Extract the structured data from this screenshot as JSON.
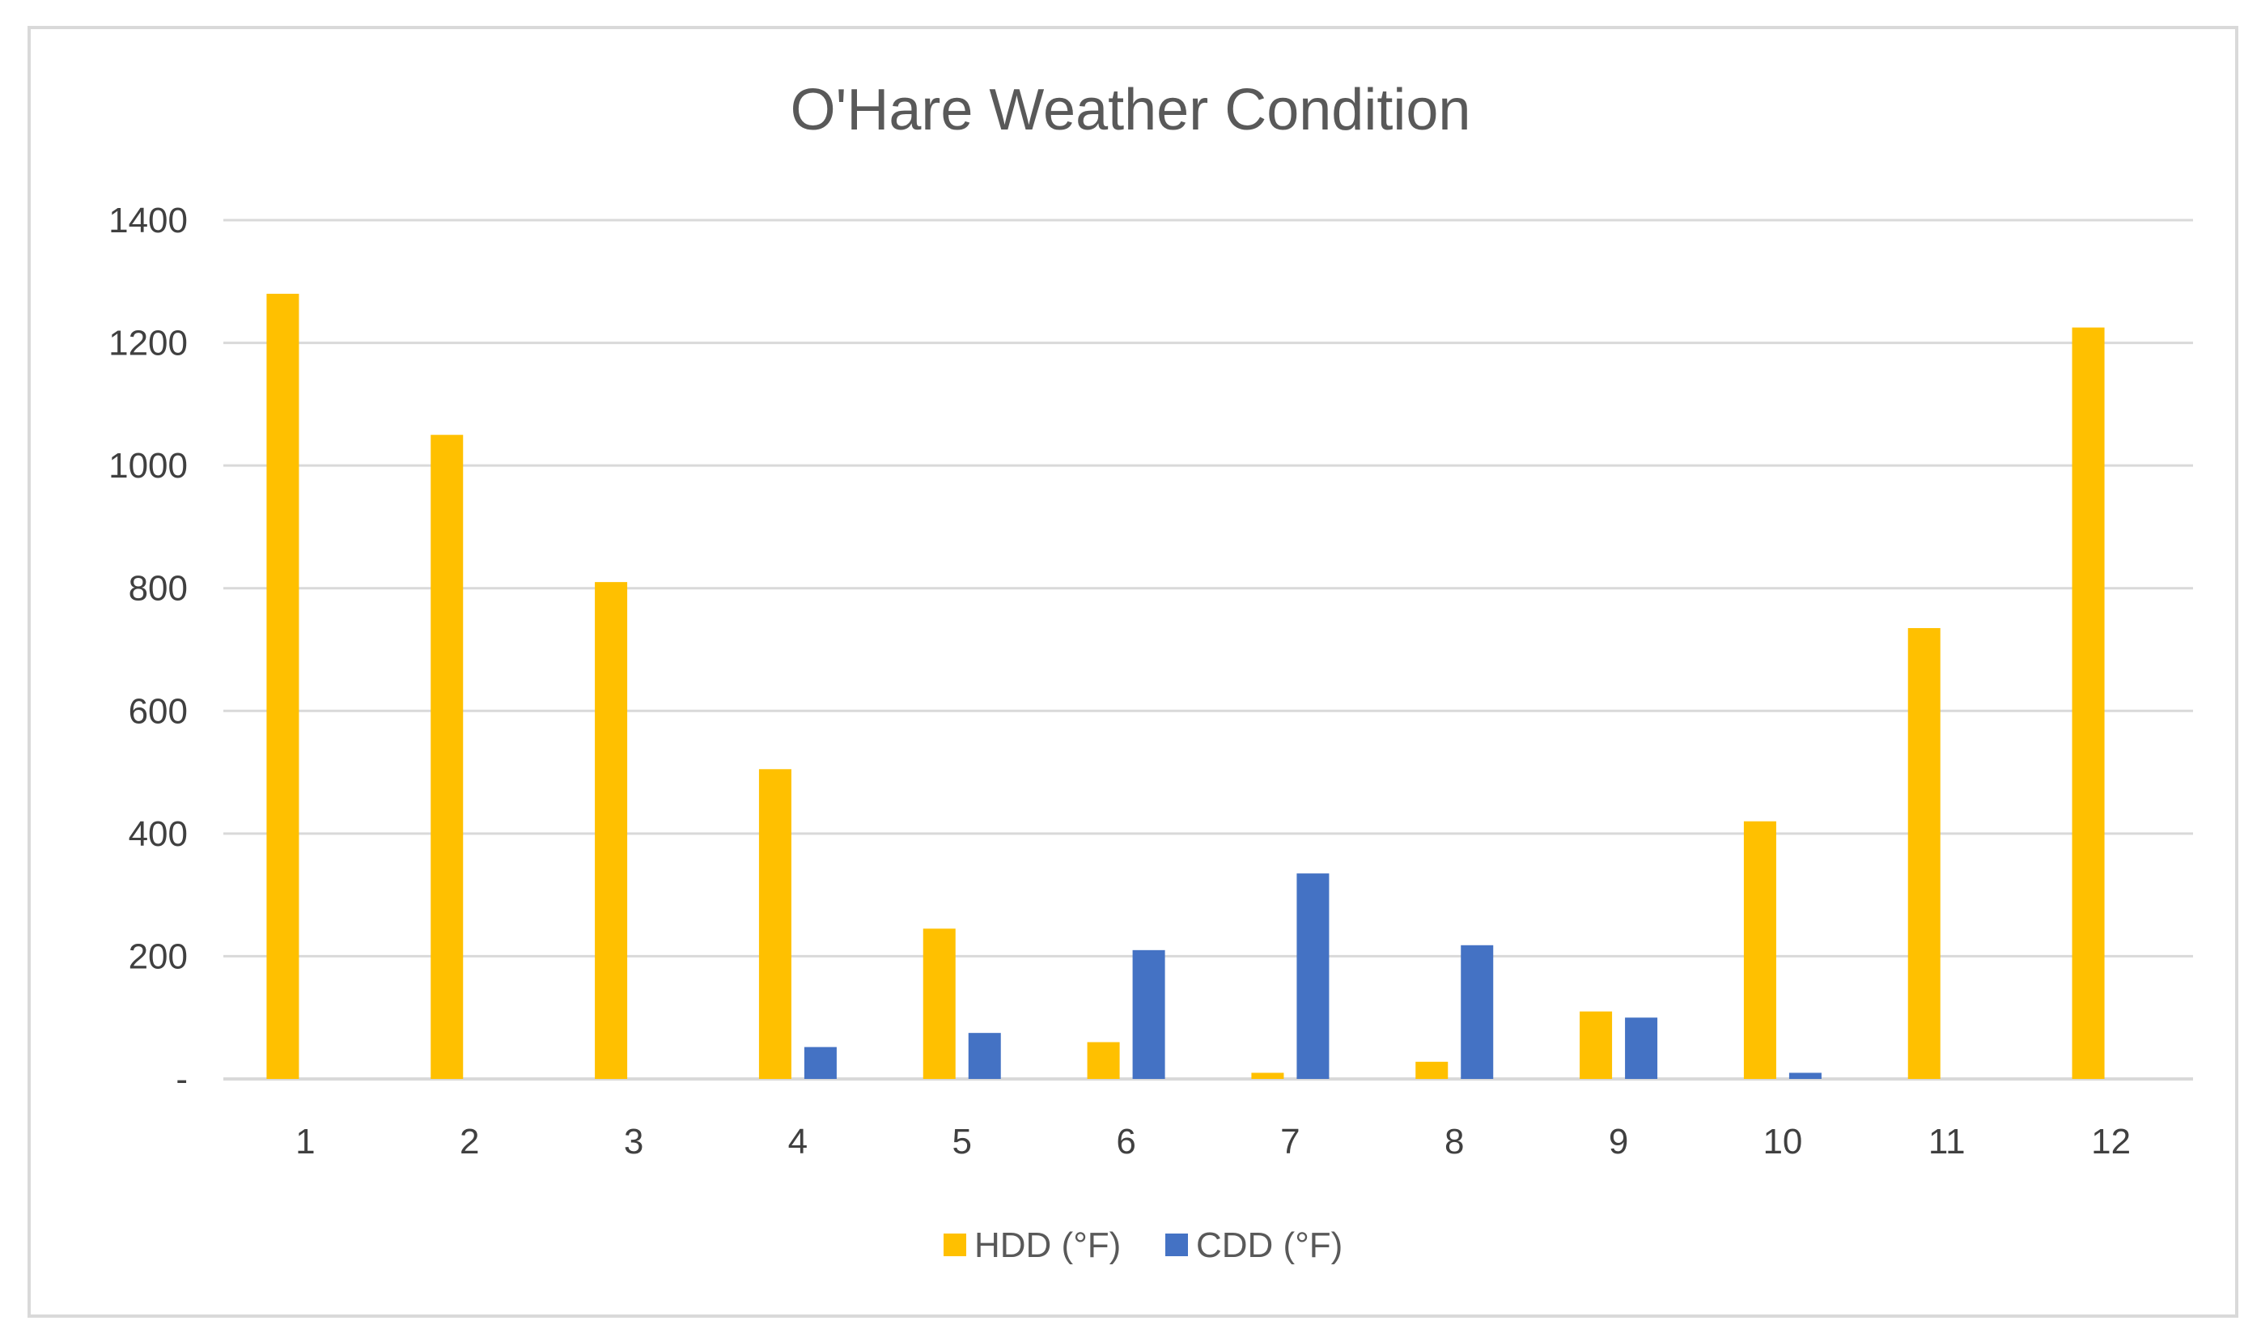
{
  "chart_data": {
    "type": "bar",
    "title": "O'Hare Weather Condition",
    "xlabel": "",
    "ylabel": "",
    "categories": [
      "1",
      "2",
      "3",
      "4",
      "5",
      "6",
      "7",
      "8",
      "9",
      "10",
      "11",
      "12"
    ],
    "series": [
      {
        "name": "HDD (°F)",
        "color": "#ffc000",
        "values": [
          1280,
          1050,
          810,
          505,
          245,
          60,
          10,
          28,
          110,
          420,
          735,
          1225
        ]
      },
      {
        "name": "CDD (°F)",
        "color": "#4472c4",
        "values": [
          0,
          0,
          0,
          52,
          75,
          210,
          335,
          218,
          100,
          10,
          0,
          0
        ]
      }
    ],
    "ylim": [
      0,
      1400
    ],
    "y_tick_labels": [
      "-",
      "200",
      "400",
      "600",
      "800",
      "1000",
      "1200",
      "1400"
    ],
    "grid": true,
    "legend_position": "bottom"
  }
}
